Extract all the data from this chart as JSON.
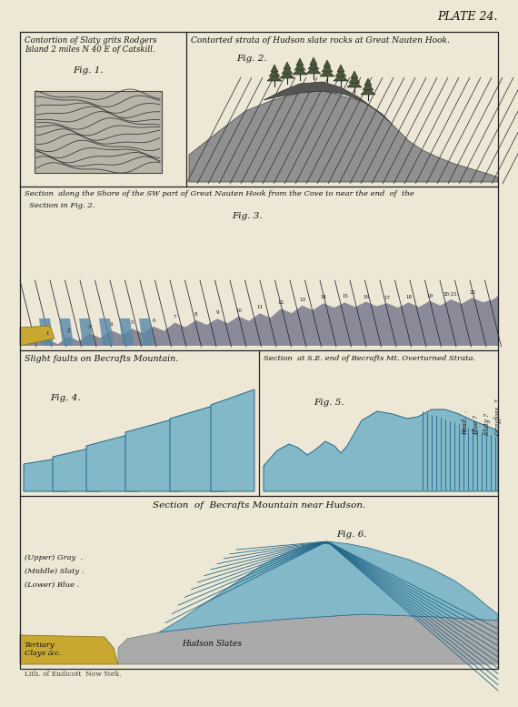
{
  "bg_color": "#ede8d5",
  "panel_bg": "#ede8d5",
  "border_color": "#222222",
  "plate_title": "PLATE 24.",
  "fig1_title": "Contortion of Slaty grits Rodgers\nIsland 2 miles N 40 E of Catskill.",
  "fig1_label": "Fig. 1.",
  "fig2_title": "Contorted strata of Hudson slate rocks at Great Nauten Hook.",
  "fig2_label": "Fig. 2.",
  "fig3_title_a": "Section  along the Shore of the SW part of Great Nauten Hook from the Cove to near the end  of  the",
  "fig3_title_b": "  Section in Fig. 2.",
  "fig3_label": "Fig. 3.",
  "fig4_title": "Slight faults on Becrafts Mountain.",
  "fig4_label": "Fig. 4.",
  "fig5_title": "Section  at S.E. end of Becrafts Mt. Overturned Strata.",
  "fig5_label": "Fig. 5.",
  "fig5_labels": [
    "Grayfoss. ?",
    "Slaty ?",
    "Blue ?",
    "Road.  ."
  ],
  "fig6_title": "Section  of  Becrafts Mountain near Hudson.",
  "fig6_label": "Fig. 6.",
  "fig6_labels": [
    "(Upper) Gray  .",
    "(Middle) Slaty .",
    "(Lower) Blue ."
  ],
  "fig6_bottom_label": "Hudson Slates",
  "fig6_corner_label": "Tertiary\nClays &c.",
  "bottom_credit": "Lith. of Endicott  New York.",
  "gray_rock": "#888888",
  "dark_gray_rock": "#666666",
  "blue_color": "#82b8c8",
  "blue_dark": "#5090a8",
  "yellow_color": "#c8a830",
  "cream": "#ede8d5",
  "dark_line": "#222222",
  "med_line": "#555555"
}
